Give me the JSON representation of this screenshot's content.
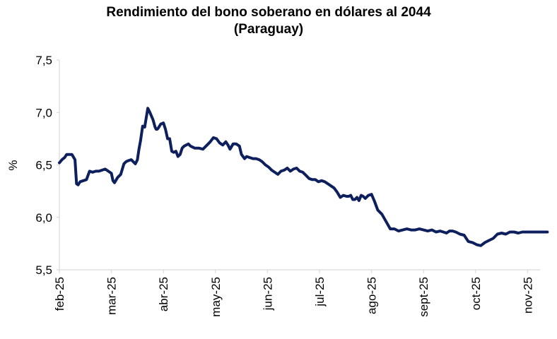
{
  "chart_data": {
    "type": "line",
    "title_line1": "Rendimiento del bono soberano en dólares al 2044",
    "title_line2": "(Paraguay)",
    "ylabel": "%",
    "xlabel": "",
    "ylim": [
      5.5,
      7.5
    ],
    "yticks": [
      "7,5",
      "7,0",
      "6,5",
      "6,0",
      "5,5"
    ],
    "ytick_values": [
      7.5,
      7.0,
      6.5,
      6.0,
      5.5
    ],
    "xticks": [
      "feb-25",
      "mar-25",
      "abr-25",
      "may-25",
      "jun-25",
      "jul-25",
      "ago-25",
      "sept-25",
      "oct-25",
      "nov-25"
    ],
    "grid": false,
    "line_color": "#0d1f5c",
    "series": [
      {
        "name": "Rendimiento",
        "x": [
          0,
          0.05,
          0.1,
          0.14,
          0.18,
          0.24,
          0.3,
          0.33,
          0.36,
          0.4,
          0.46,
          0.52,
          0.58,
          0.64,
          0.7,
          0.76,
          0.82,
          0.88,
          0.94,
          1.0,
          1.03,
          1.06,
          1.12,
          1.18,
          1.24,
          1.28,
          1.32,
          1.38,
          1.46,
          1.5,
          1.53,
          1.56,
          1.6,
          1.64,
          1.7,
          1.74,
          1.8,
          1.84,
          1.86,
          1.88,
          1.9,
          1.95,
          2.0,
          2.04,
          2.08,
          2.12,
          2.16,
          2.2,
          2.24,
          2.28,
          2.32,
          2.36,
          2.4,
          2.44,
          2.48,
          2.52,
          2.6,
          2.68,
          2.76,
          2.84,
          2.9,
          2.96,
          3.02,
          3.08,
          3.14,
          3.2,
          3.24,
          3.28,
          3.34,
          3.4,
          3.46,
          3.5,
          3.56,
          3.6,
          3.66,
          3.72,
          3.78,
          3.84,
          3.9,
          3.96,
          4.02,
          4.08,
          4.14,
          4.2,
          4.26,
          4.32,
          4.38,
          4.44,
          4.5,
          4.56,
          4.62,
          4.68,
          4.74,
          4.8,
          4.86,
          4.92,
          4.98,
          5.04,
          5.1,
          5.16,
          5.22,
          5.28,
          5.34,
          5.4,
          5.46,
          5.52,
          5.56,
          5.6,
          5.64,
          5.68,
          5.72,
          5.76,
          5.8,
          5.84,
          5.88,
          5.94,
          6.0,
          6.06,
          6.12,
          6.2,
          6.28,
          6.36,
          6.44,
          6.52,
          6.6,
          6.68,
          6.76,
          6.84,
          6.92,
          7.0,
          7.08,
          7.16,
          7.24,
          7.32,
          7.38,
          7.44,
          7.5,
          7.56,
          7.62,
          7.7,
          7.78,
          7.86,
          7.94,
          8.02,
          8.1,
          8.18,
          8.26,
          8.34,
          8.42,
          8.5,
          8.58,
          8.66,
          8.74,
          8.82,
          8.9,
          8.98,
          9.06,
          9.14,
          9.22,
          9.3,
          9.38
        ],
        "values": [
          6.52,
          6.55,
          6.57,
          6.6,
          6.6,
          6.6,
          6.55,
          6.32,
          6.31,
          6.34,
          6.35,
          6.36,
          6.44,
          6.43,
          6.44,
          6.44,
          6.45,
          6.46,
          6.44,
          6.42,
          6.35,
          6.33,
          6.38,
          6.41,
          6.51,
          6.53,
          6.54,
          6.55,
          6.51,
          6.55,
          6.65,
          6.73,
          6.87,
          6.86,
          7.04,
          7.0,
          6.93,
          6.86,
          6.84,
          6.84,
          6.85,
          6.89,
          6.9,
          6.84,
          6.75,
          6.75,
          6.63,
          6.62,
          6.63,
          6.58,
          6.6,
          6.66,
          6.68,
          6.69,
          6.7,
          6.68,
          6.66,
          6.66,
          6.65,
          6.69,
          6.72,
          6.76,
          6.75,
          6.71,
          6.69,
          6.72,
          6.69,
          6.65,
          6.7,
          6.7,
          6.68,
          6.6,
          6.56,
          6.58,
          6.57,
          6.56,
          6.56,
          6.55,
          6.53,
          6.5,
          6.48,
          6.45,
          6.43,
          6.41,
          6.44,
          6.45,
          6.47,
          6.44,
          6.46,
          6.47,
          6.44,
          6.43,
          6.4,
          6.37,
          6.36,
          6.36,
          6.34,
          6.35,
          6.34,
          6.32,
          6.3,
          6.28,
          6.24,
          6.19,
          6.21,
          6.2,
          6.2,
          6.21,
          6.17,
          6.17,
          6.19,
          6.16,
          6.21,
          6.2,
          6.18,
          6.21,
          6.22,
          6.15,
          6.07,
          6.03,
          5.96,
          5.89,
          5.89,
          5.87,
          5.88,
          5.89,
          5.88,
          5.88,
          5.89,
          5.88,
          5.87,
          5.88,
          5.86,
          5.87,
          5.86,
          5.85,
          5.87,
          5.87,
          5.86,
          5.84,
          5.83,
          5.77,
          5.76,
          5.74,
          5.73,
          5.76,
          5.78,
          5.8,
          5.84,
          5.85,
          5.84,
          5.86,
          5.86,
          5.85,
          5.86,
          5.86,
          5.86,
          5.86,
          5.86,
          5.86,
          5.86
        ]
      }
    ]
  }
}
